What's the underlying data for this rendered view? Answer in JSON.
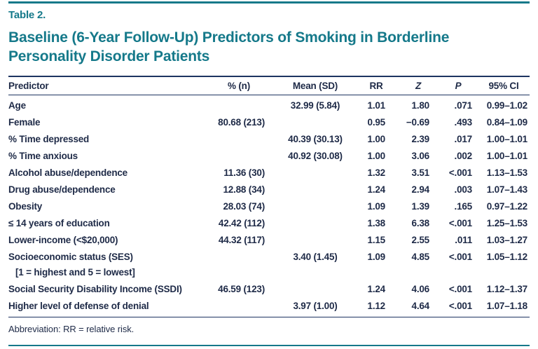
{
  "page": {
    "table_label": "Table 2.",
    "title": "Baseline (6-Year Follow-Up) Predictors of Smoking in Borderline Personality Disorder Patients",
    "footnote": "Abbreviation: RR = relative risk."
  },
  "colors": {
    "teal_accent": "#15798a",
    "rule_navy": "#1d3461",
    "text_navy": "#1e2a47"
  },
  "table": {
    "columns": [
      "Predictor",
      "% (n)",
      "Mean (SD)",
      "RR",
      "Z",
      "P",
      "95% CI"
    ],
    "rows": [
      {
        "predictor": "Age",
        "pct_n": "",
        "mean_sd": "32.99 (5.84)",
        "rr": "1.01",
        "z": "1.80",
        "p": ".071",
        "ci": "0.99–1.02"
      },
      {
        "predictor": "Female",
        "pct_n": "80.68 (213)",
        "mean_sd": "",
        "rr": "0.95",
        "z": "−0.69",
        "p": ".493",
        "ci": "0.84–1.09"
      },
      {
        "predictor": "% Time depressed",
        "pct_n": "",
        "mean_sd": "40.39 (30.13)",
        "rr": "1.00",
        "z": "2.39",
        "p": ".017",
        "ci": "1.00–1.01"
      },
      {
        "predictor": "% Time anxious",
        "pct_n": "",
        "mean_sd": "40.92 (30.08)",
        "rr": "1.00",
        "z": "3.06",
        "p": ".002",
        "ci": "1.00–1.01"
      },
      {
        "predictor": "Alcohol abuse/dependence",
        "pct_n": "11.36 (30)",
        "mean_sd": "",
        "rr": "1.32",
        "z": "3.51",
        "p": "<.001",
        "ci": "1.13–1.53"
      },
      {
        "predictor": "Drug abuse/dependence",
        "pct_n": "12.88 (34)",
        "mean_sd": "",
        "rr": "1.24",
        "z": "2.94",
        "p": ".003",
        "ci": "1.07–1.43"
      },
      {
        "predictor": "Obesity",
        "pct_n": "28.03 (74)",
        "mean_sd": "",
        "rr": "1.09",
        "z": "1.39",
        "p": ".165",
        "ci": "0.97–1.22"
      },
      {
        "predictor": "≤ 14 years of education",
        "pct_n": "42.42 (112)",
        "mean_sd": "",
        "rr": "1.38",
        "z": "6.38",
        "p": "<.001",
        "ci": "1.25–1.53"
      },
      {
        "predictor": "Lower-income (<$20,000)",
        "pct_n": "44.32 (117)",
        "mean_sd": "",
        "rr": "1.15",
        "z": "2.55",
        "p": ".011",
        "ci": "1.03–1.27"
      },
      {
        "predictor": "Socioeconomic status (SES)",
        "predictor2": "[1 = highest and 5 = lowest]",
        "pct_n": "",
        "mean_sd": "3.40 (1.45)",
        "rr": "1.09",
        "z": "4.85",
        "p": "<.001",
        "ci": "1.05–1.12"
      },
      {
        "predictor": "Social Security Disability Income (SSDI)",
        "pct_n": "46.59 (123)",
        "mean_sd": "",
        "rr": "1.24",
        "z": "4.06",
        "p": "<.001",
        "ci": "1.12–1.37"
      },
      {
        "predictor": "Higher level of defense of denial",
        "pct_n": "",
        "mean_sd": "3.97 (1.00)",
        "rr": "1.12",
        "z": "4.64",
        "p": "<.001",
        "ci": "1.07–1.18"
      }
    ]
  }
}
